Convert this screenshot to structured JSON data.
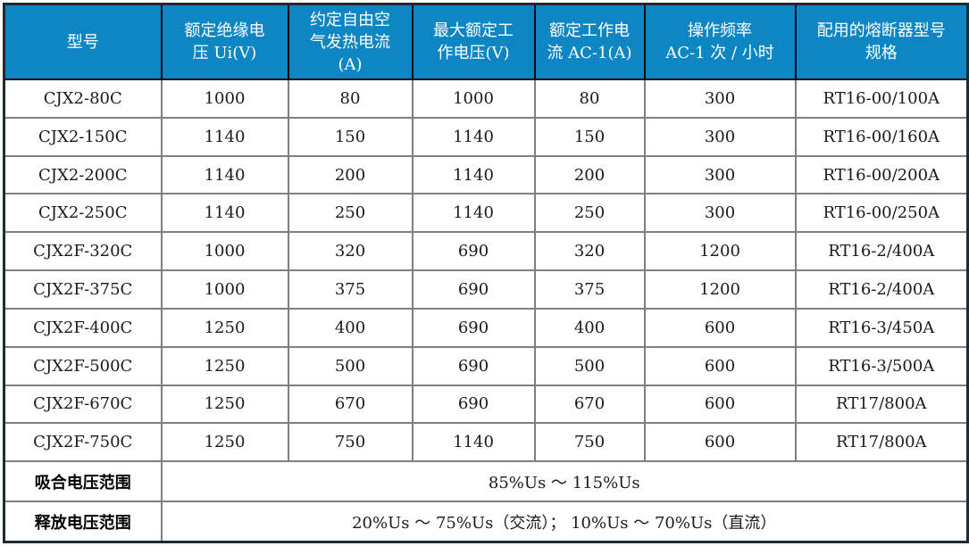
{
  "colors": {
    "header_bg": "#0d86c3",
    "header_text": "#ffffff",
    "grid_line": "#7f7f7f",
    "outer_border": "#202a33"
  },
  "table": {
    "headers": [
      "型号",
      "额定绝缘电\n压 Ui(V)",
      "约定自由空\n气发热电流\n(A)",
      "最大额定工\n作电压(V)",
      "额定工作电\n流 AC-1(A)",
      "操作频率\nAC-1 次 / 小时",
      "配用的熔断器型号\n规格"
    ],
    "rows": [
      [
        "CJX2-80C",
        "1000",
        "80",
        "1000",
        "80",
        "300",
        "RT16-00/100A"
      ],
      [
        "CJX2-150C",
        "1140",
        "150",
        "1140",
        "150",
        "300",
        "RT16-00/160A"
      ],
      [
        "CJX2-200C",
        "1140",
        "200",
        "1140",
        "200",
        "300",
        "RT16-00/200A"
      ],
      [
        "CJX2-250C",
        "1140",
        "250",
        "1140",
        "250",
        "300",
        "RT16-00/250A"
      ],
      [
        "CJX2F-320C",
        "1000",
        "320",
        "690",
        "320",
        "1200",
        "RT16-2/400A"
      ],
      [
        "CJX2F-375C",
        "1000",
        "375",
        "690",
        "375",
        "1200",
        "RT16-2/400A"
      ],
      [
        "CJX2F-400C",
        "1250",
        "400",
        "690",
        "400",
        "600",
        "RT16-3/450A"
      ],
      [
        "CJX2F-500C",
        "1250",
        "500",
        "690",
        "500",
        "600",
        "RT16-3/500A"
      ],
      [
        "CJX2F-670C",
        "1250",
        "670",
        "690",
        "670",
        "600",
        "RT17/800A"
      ],
      [
        "CJX2F-750C",
        "1250",
        "750",
        "1140",
        "750",
        "600",
        "RT17/800A"
      ]
    ],
    "footer_rows": [
      {
        "label": "吸合电压范围",
        "value": "85%Us ～ 115%Us"
      },
      {
        "label": "释放电压范围",
        "value": "20%Us ～ 75%Us（交流）； 10%Us ～ 70%Us（直流）"
      }
    ]
  }
}
